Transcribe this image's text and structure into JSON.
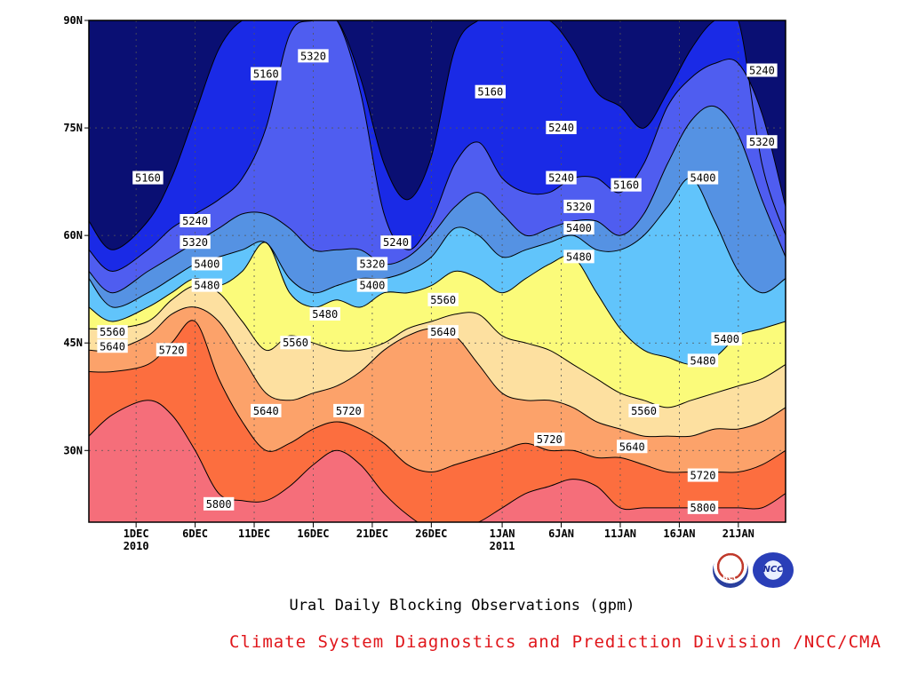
{
  "chart_data": {
    "type": "heatmap",
    "title": "Ural Daily Blocking Observations (gpm)",
    "unit": "gpm",
    "x_ticks": [
      {
        "label": "1DEC",
        "sub": "2010",
        "day": 0
      },
      {
        "label": "6DEC",
        "sub": "",
        "day": 5
      },
      {
        "label": "11DEC",
        "sub": "",
        "day": 10
      },
      {
        "label": "16DEC",
        "sub": "",
        "day": 15
      },
      {
        "label": "21DEC",
        "sub": "",
        "day": 20
      },
      {
        "label": "26DEC",
        "sub": "",
        "day": 25
      },
      {
        "label": "1JAN",
        "sub": "2011",
        "day": 31
      },
      {
        "label": "6JAN",
        "sub": "",
        "day": 36
      },
      {
        "label": "11JAN",
        "sub": "",
        "day": 41
      },
      {
        "label": "16JAN",
        "sub": "",
        "day": 46
      },
      {
        "label": "21JAN",
        "sub": "",
        "day": 51
      }
    ],
    "y_ticks": [
      {
        "label": "30N",
        "lat": 30
      },
      {
        "label": "45N",
        "lat": 45
      },
      {
        "label": "60N",
        "lat": 60
      },
      {
        "label": "75N",
        "lat": 75
      },
      {
        "label": "90N",
        "lat": 90
      }
    ],
    "xlim_days": [
      -4,
      55
    ],
    "ylim_lat": [
      20,
      90
    ],
    "grid": true,
    "levels": [
      5160,
      5240,
      5320,
      5400,
      5480,
      5560,
      5640,
      5720,
      5800
    ],
    "band_colors": [
      "#0a0f73",
      "#1a2ae6",
      "#4f5df0",
      "#5592e3",
      "#61c4fb",
      "#fbfb7a",
      "#fde0a0",
      "#fca26a",
      "#fc6e3f",
      "#f56e7a"
    ],
    "contour_days": [
      -4,
      -2,
      1,
      3,
      5,
      7,
      9,
      11,
      13,
      15,
      17,
      19,
      21,
      23,
      25,
      27,
      29,
      31,
      33,
      35,
      37,
      39,
      41,
      43,
      45,
      47,
      49,
      51,
      53,
      55
    ],
    "contour_lats": [
      {
        "level": 5160,
        "lats": [
          62,
          58,
          62,
          68,
          77,
          86,
          90,
          90,
          90,
          90,
          90,
          82,
          70,
          65,
          71,
          86,
          90,
          90,
          90,
          90,
          86,
          80,
          78,
          75,
          80,
          86,
          90,
          90,
          70,
          60
        ]
      },
      {
        "level": 5240,
        "lats": [
          58,
          55,
          58,
          61,
          63,
          65,
          68,
          75,
          88,
          90,
          90,
          80,
          63,
          58,
          62,
          70,
          73,
          68,
          66,
          66,
          68,
          68,
          66,
          70,
          78,
          82,
          84,
          84,
          77,
          64
        ]
      },
      {
        "level": 5320,
        "lats": [
          55,
          52,
          55,
          57,
          59,
          61,
          63,
          63,
          61,
          58,
          58,
          58,
          56,
          57,
          60,
          64,
          66,
          63,
          60,
          61,
          62,
          62,
          60,
          63,
          70,
          76,
          78,
          74,
          65,
          57
        ]
      },
      {
        "level": 5400,
        "lats": [
          54,
          50,
          52,
          54,
          56,
          57,
          58,
          59,
          54,
          52,
          53,
          54,
          54,
          55,
          57,
          61,
          60,
          57,
          58,
          59,
          60,
          58,
          58,
          60,
          64,
          68,
          62,
          55,
          52,
          54
        ]
      },
      {
        "level": 5480,
        "lats": [
          50,
          48,
          50,
          52,
          54,
          53,
          55,
          59,
          52,
          50,
          51,
          50,
          52,
          52,
          53,
          55,
          54,
          52,
          54,
          56,
          57,
          52,
          47,
          44,
          43,
          42,
          43,
          46,
          47,
          48
        ]
      },
      {
        "level": 5560,
        "lats": [
          47,
          47,
          48,
          51,
          53,
          52,
          48,
          44,
          46,
          45,
          44,
          44,
          45,
          47,
          48,
          49,
          49,
          46,
          45,
          44,
          42,
          40,
          38,
          37,
          36,
          37,
          38,
          39,
          40,
          42
        ]
      },
      {
        "level": 5640,
        "lats": [
          44,
          44,
          46,
          49,
          50,
          48,
          43,
          38,
          37,
          38,
          39,
          41,
          44,
          46,
          47,
          46,
          42,
          38,
          37,
          37,
          36,
          34,
          33,
          32,
          32,
          32,
          33,
          33,
          34,
          36
        ]
      },
      {
        "level": 5720,
        "lats": [
          41,
          41,
          42,
          45,
          48,
          40,
          34,
          30,
          31,
          33,
          34,
          33,
          31,
          28,
          27,
          28,
          29,
          30,
          31,
          30,
          30,
          29,
          29,
          28,
          27,
          27,
          27,
          27,
          28,
          30
        ]
      },
      {
        "level": 5800,
        "lats": [
          32,
          35,
          37,
          35,
          30,
          24,
          23,
          23,
          25,
          28,
          30,
          28,
          24,
          21,
          19,
          19,
          20,
          22,
          24,
          25,
          26,
          25,
          22,
          22,
          22,
          22,
          22,
          22,
          22,
          24
        ]
      }
    ],
    "data_labels": [
      {
        "text": "5160",
        "day": 1,
        "lat": 68
      },
      {
        "text": "5160",
        "day": 11,
        "lat": 82.5
      },
      {
        "text": "5320",
        "day": 15,
        "lat": 85
      },
      {
        "text": "5160",
        "day": 30,
        "lat": 80
      },
      {
        "text": "5240",
        "day": 36,
        "lat": 75
      },
      {
        "text": "5240",
        "day": 53,
        "lat": 83
      },
      {
        "text": "5320",
        "day": 53,
        "lat": 73
      },
      {
        "text": "5400",
        "day": 48,
        "lat": 68
      },
      {
        "text": "5160",
        "day": 41.5,
        "lat": 67
      },
      {
        "text": "5240",
        "day": 36,
        "lat": 68
      },
      {
        "text": "5320",
        "day": 37.5,
        "lat": 64
      },
      {
        "text": "5400",
        "day": 37.5,
        "lat": 61
      },
      {
        "text": "5480",
        "day": 37.5,
        "lat": 57
      },
      {
        "text": "5240",
        "day": 5,
        "lat": 62
      },
      {
        "text": "5320",
        "day": 5,
        "lat": 59
      },
      {
        "text": "5400",
        "day": 6,
        "lat": 56
      },
      {
        "text": "5480",
        "day": 6,
        "lat": 53
      },
      {
        "text": "5240",
        "day": 22,
        "lat": 59
      },
      {
        "text": "5320",
        "day": 20,
        "lat": 56
      },
      {
        "text": "5400",
        "day": 20,
        "lat": 53
      },
      {
        "text": "5480",
        "day": 16,
        "lat": 49
      },
      {
        "text": "5560",
        "day": 26,
        "lat": 51
      },
      {
        "text": "5560",
        "day": -2,
        "lat": 46.5
      },
      {
        "text": "5640",
        "day": -2,
        "lat": 44.5
      },
      {
        "text": "5720",
        "day": 3,
        "lat": 44
      },
      {
        "text": "5560",
        "day": 13.5,
        "lat": 45
      },
      {
        "text": "5640",
        "day": 26,
        "lat": 46.5
      },
      {
        "text": "5640",
        "day": 11,
        "lat": 35.5
      },
      {
        "text": "5720",
        "day": 18,
        "lat": 35.5
      },
      {
        "text": "5560",
        "day": 43,
        "lat": 35.5
      },
      {
        "text": "5720",
        "day": 35,
        "lat": 31.5
      },
      {
        "text": "5640",
        "day": 42,
        "lat": 30.5
      },
      {
        "text": "5480",
        "day": 48,
        "lat": 42.5
      },
      {
        "text": "5400",
        "day": 50,
        "lat": 45.5
      },
      {
        "text": "5720",
        "day": 48,
        "lat": 26.5
      },
      {
        "text": "5800",
        "day": 48,
        "lat": 22
      },
      {
        "text": "5800",
        "day": 7,
        "lat": 22.5
      }
    ]
  },
  "caption": "Ural Daily Blocking Observations (gpm)",
  "credit": "Climate System Diagnostics and Prediction Division /NCC/CMA",
  "logos": [
    {
      "text": "BCC",
      "icon": "bcc-logo"
    },
    {
      "text": "NCC",
      "icon": "ncc-logo"
    }
  ]
}
